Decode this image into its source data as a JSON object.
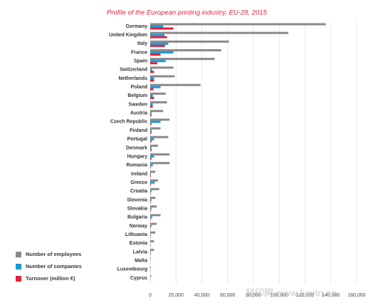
{
  "chart_data": {
    "type": "barh",
    "title": "Profile of the European printing industry, EU-28, 2015",
    "watermark": "科印网 www.keyin.cn",
    "categories": [
      "Germany",
      "United Kingdom",
      "Italy",
      "France",
      "Spain",
      "Switzerland",
      "Netherlands",
      "Poland",
      "Belgium",
      "Sweden",
      "Austria",
      "Czech Republic",
      "Finland",
      "Portugal",
      "Denmark",
      "Hungary",
      "Romania",
      "Ireland",
      "Greece",
      "Croatia",
      "Slovenia",
      "Slovakia",
      "Bulgaria",
      "Norway",
      "Lithuania",
      "Estonia",
      "Latvia",
      "Malta",
      "Luxembourg",
      "Cyprus"
    ],
    "series": [
      {
        "name": "Number of employees",
        "color": "#8a8a8a",
        "values": [
          136000,
          107000,
          61000,
          55000,
          50000,
          18000,
          19000,
          39000,
          12000,
          13000,
          10000,
          15000,
          8000,
          14000,
          6000,
          15000,
          15000,
          4000,
          6000,
          7000,
          4000,
          5000,
          8000,
          5000,
          4000,
          3000,
          3000,
          500,
          500,
          800
        ]
      },
      {
        "name": "Number of companies",
        "color": "#1a9ad6",
        "values": [
          10000,
          11000,
          14000,
          18000,
          12000,
          1500,
          3000,
          8000,
          2000,
          2000,
          1000,
          8000,
          1000,
          3000,
          1000,
          3000,
          2000,
          500,
          3500,
          1000,
          1000,
          1000,
          1500,
          1000,
          500,
          300,
          500,
          100,
          100,
          200
        ]
      },
      {
        "name": "Turnover (million €)",
        "color": "#e3203b",
        "values": [
          18000,
          13000,
          11500,
          8000,
          5500,
          3000,
          3000,
          2500,
          3000,
          2000,
          1000,
          1000,
          1000,
          1000,
          1000,
          1000,
          500,
          500,
          500,
          400,
          400,
          400,
          400,
          300,
          300,
          300,
          300,
          100,
          100,
          100
        ]
      }
    ],
    "xlim": [
      0,
      160000
    ],
    "xticks": [
      0,
      {
        "value": 20000,
        "label": "20,000"
      },
      {
        "value": 40000,
        "label": "40,000"
      },
      {
        "value": 60000,
        "label": "60,000"
      },
      {
        "value": 80000,
        "label": "80,000"
      },
      {
        "value": 100000,
        "label": "100,000"
      },
      {
        "value": 120000,
        "label": "120,000"
      },
      {
        "value": 140000,
        "label": "140,000"
      },
      {
        "value": 160000,
        "label": "160,000"
      }
    ],
    "grid": true,
    "legend": "lower-left"
  }
}
